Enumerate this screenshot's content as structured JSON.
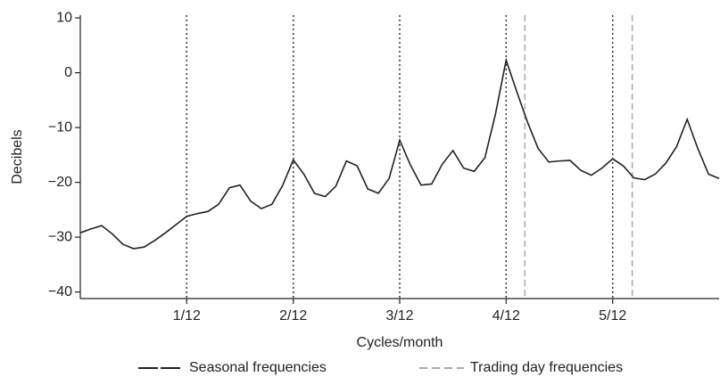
{
  "chart_data": {
    "type": "line",
    "ylabel": "Decibels",
    "xlabel": "Cycles/month",
    "xlim": [
      0,
      0.5
    ],
    "ylim": [
      -41.2,
      10.5
    ],
    "yticks": [
      10,
      0,
      {
        "value": -10,
        "label": "−10"
      },
      {
        "value": -20,
        "label": "−20"
      },
      {
        "value": -30,
        "label": "−30"
      },
      {
        "value": -40,
        "label": "−40"
      }
    ],
    "xticks": [
      {
        "value": 0.0833,
        "label": "1/12"
      },
      {
        "value": 0.1667,
        "label": "2/12"
      },
      {
        "value": 0.25,
        "label": "3/12"
      },
      {
        "value": 0.3333,
        "label": "4/12"
      },
      {
        "value": 0.4167,
        "label": "5/12"
      }
    ],
    "x": [
      0,
      0.0083,
      0.0167,
      0.025,
      0.0333,
      0.0417,
      0.05,
      0.0583,
      0.0667,
      0.075,
      0.0833,
      0.0917,
      0.1,
      0.1083,
      0.1167,
      0.125,
      0.1333,
      0.1417,
      0.15,
      0.1583,
      0.1667,
      0.175,
      0.1833,
      0.1917,
      0.2,
      0.2083,
      0.2167,
      0.225,
      0.2333,
      0.2417,
      0.25,
      0.2583,
      0.2667,
      0.275,
      0.2833,
      0.2917,
      0.3,
      0.3083,
      0.3167,
      0.325,
      0.3333,
      0.3417,
      0.35,
      0.3583,
      0.3667,
      0.375,
      0.3833,
      0.3917,
      0.4,
      0.4083,
      0.4167,
      0.425,
      0.4333,
      0.4417,
      0.45,
      0.4583,
      0.4667,
      0.475,
      0.4833,
      0.4917,
      0.5
    ],
    "values": [
      -29.2,
      -28.5,
      -27.9,
      -29.4,
      -31.3,
      -32.1,
      -31.8,
      -30.6,
      -29.2,
      -27.7,
      -26.2,
      -25.7,
      -25.3,
      -24.0,
      -21.0,
      -20.5,
      -23.4,
      -24.8,
      -24.0,
      -20.6,
      -15.9,
      -18.5,
      -22.0,
      -22.6,
      -20.7,
      -16.1,
      -17.0,
      -21.2,
      -22.0,
      -19.3,
      -12.3,
      -16.8,
      -20.5,
      -20.3,
      -16.7,
      -14.2,
      -17.4,
      -18.0,
      -15.5,
      -7.5,
      2.3,
      -3.5,
      -9.0,
      -13.8,
      -16.3,
      -16.1,
      -16.0,
      -17.8,
      -18.7,
      -17.4,
      -15.7,
      -17.0,
      -19.2,
      -19.5,
      -18.5,
      -16.5,
      -13.5,
      -8.5,
      -13.8,
      -18.5,
      -19.3
    ],
    "color": "#222222",
    "reference_lines": [
      {
        "name": "Seasonal frequencies",
        "color": "#333333",
        "x": [
          0.0833,
          0.1667,
          0.25,
          0.3333,
          0.4167
        ]
      },
      {
        "name": "Trading day frequencies",
        "color": "#aaaaaa",
        "x": [
          0.348,
          0.432
        ]
      }
    ]
  }
}
